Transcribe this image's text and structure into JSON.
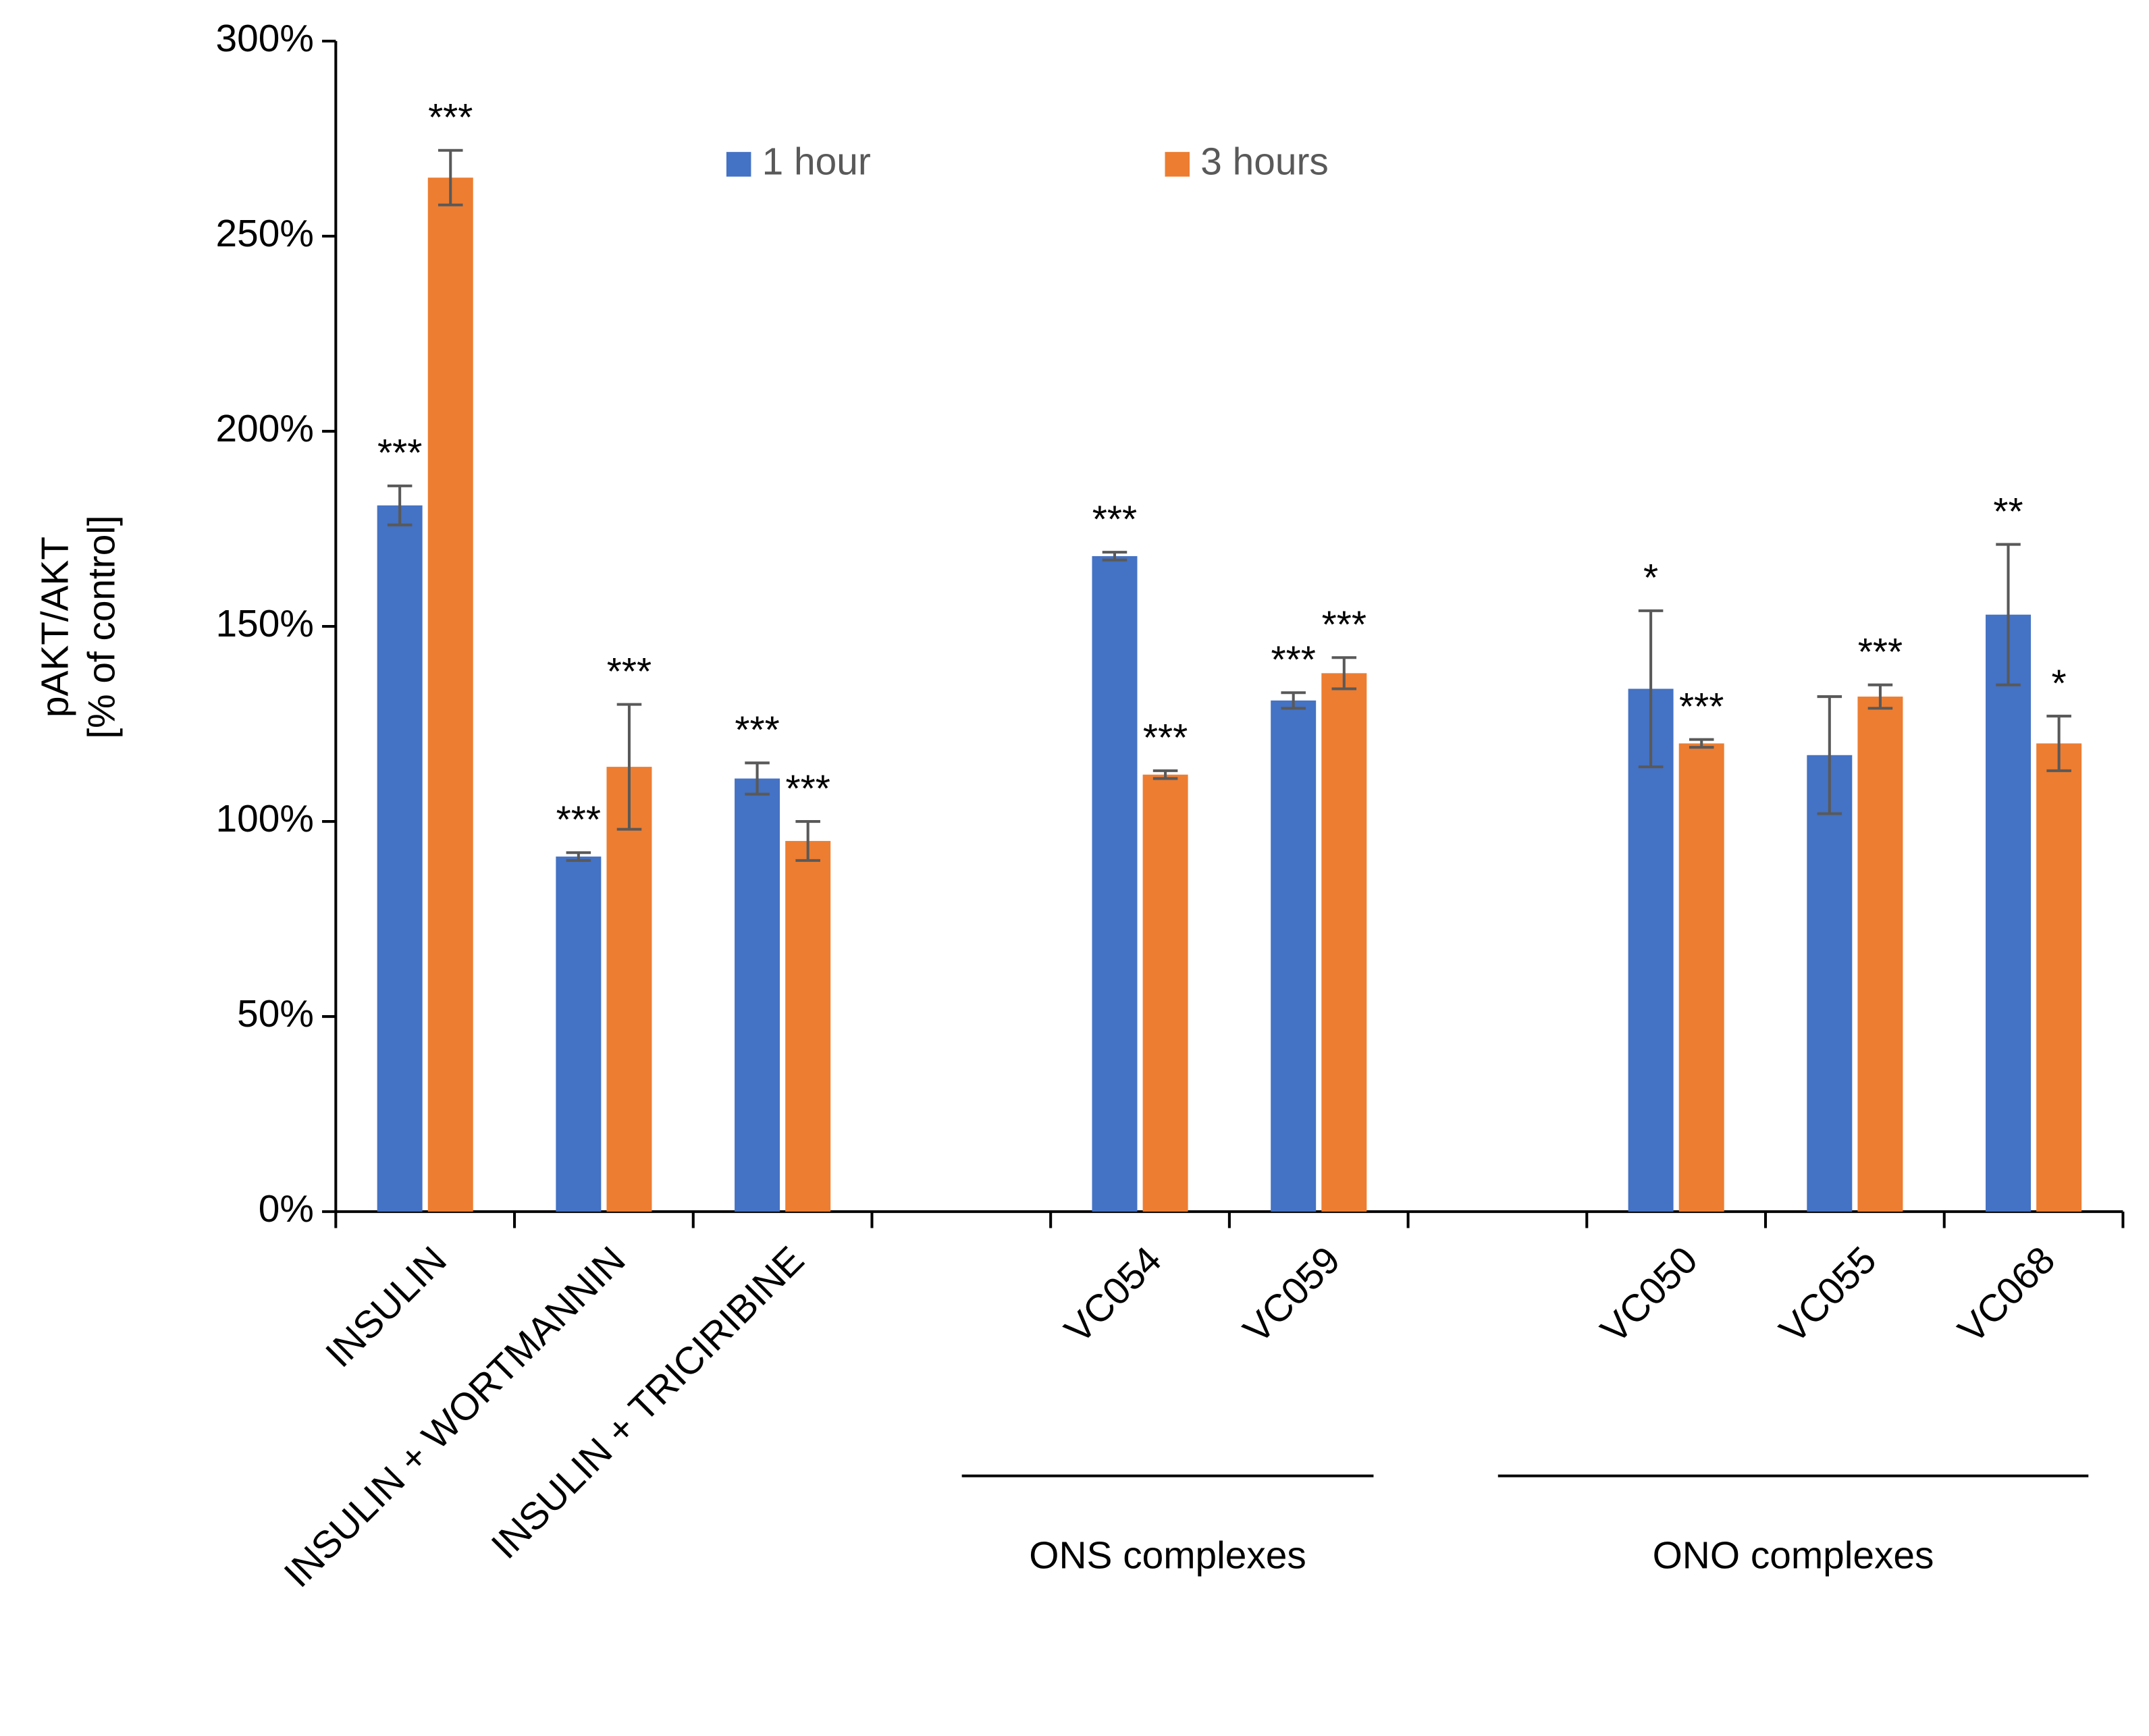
{
  "chart_data": {
    "type": "bar",
    "ylabel": [
      "pAKT/AKT",
      "[% of control]"
    ],
    "categories": [
      "INSULIN",
      "INSULIN + WORTMANNIN",
      "INSULIN + TRICIRIBINE",
      null,
      "VC054",
      "VC059",
      null,
      "VC050",
      "VC055",
      "VC068"
    ],
    "series": [
      {
        "name": "1 hour",
        "color": "#4472c4",
        "values": [
          181,
          91,
          111,
          null,
          168,
          131,
          null,
          134,
          117,
          153
        ],
        "errors": [
          5,
          1,
          4,
          null,
          1,
          2,
          null,
          20,
          15,
          18
        ],
        "labels": [
          "***",
          "***",
          "***",
          null,
          "***",
          "***",
          null,
          "*",
          null,
          "**"
        ]
      },
      {
        "name": "3 hours",
        "color": "#ed7d31",
        "values": [
          265,
          114,
          95,
          null,
          112,
          138,
          null,
          120,
          132,
          120
        ],
        "errors": [
          7,
          16,
          5,
          null,
          1,
          4,
          null,
          1,
          3,
          7
        ],
        "labels": [
          "***",
          "***",
          "***",
          null,
          "***",
          "***",
          null,
          "***",
          "***",
          "*"
        ]
      }
    ],
    "groups": [
      {
        "label": "ONS complexes",
        "categories": [
          "VC054",
          "VC059"
        ]
      },
      {
        "label": "ONO complexes",
        "categories": [
          "VC050",
          "VC055",
          "VC068"
        ]
      }
    ],
    "ylim": [
      0,
      300
    ],
    "yticks": [
      {
        "value": 0,
        "label": "0%"
      },
      {
        "value": 50,
        "label": "50%"
      },
      {
        "value": 100,
        "label": "100%"
      },
      {
        "value": 150,
        "label": "150%"
      },
      {
        "value": 200,
        "label": "200%"
      },
      {
        "value": 250,
        "label": "250%"
      },
      {
        "value": 300,
        "label": "300%"
      }
    ],
    "legend": "top"
  }
}
